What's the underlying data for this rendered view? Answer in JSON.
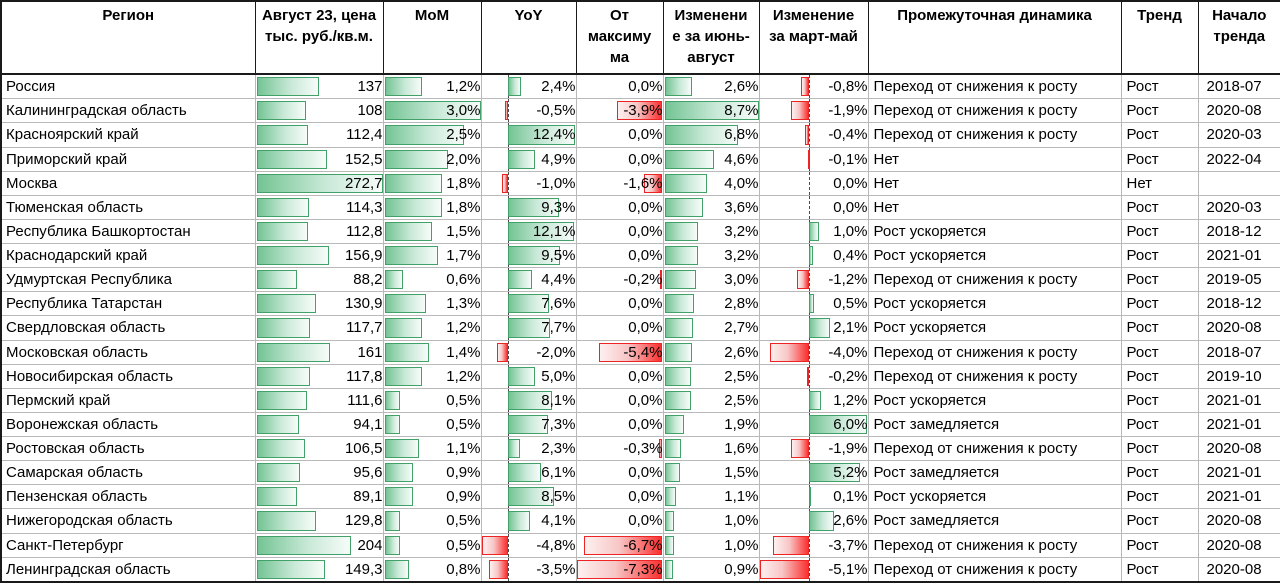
{
  "table": {
    "columns": [
      {
        "id": "region",
        "label": "Регион"
      },
      {
        "id": "price",
        "label": "Август 23, цена\nтыс. руб./кв.м."
      },
      {
        "id": "mom",
        "label": "MoM"
      },
      {
        "id": "yoy",
        "label": "YoY"
      },
      {
        "id": "from_max",
        "label": "От\nмаксиму\nма"
      },
      {
        "id": "jun_aug",
        "label": "Изменени\nе за июнь-\nавгуст"
      },
      {
        "id": "mar_may",
        "label": "Изменение\nза март-май"
      },
      {
        "id": "dynamics",
        "label": "Промежуточная динамика"
      },
      {
        "id": "trend",
        "label": "Тренд"
      },
      {
        "id": "trend_start",
        "label": "Начало\nтренда"
      }
    ],
    "rows": [
      {
        "region": "Россия",
        "price": "137",
        "price_v": 137,
        "mom": "1,2%",
        "mom_v": 1.2,
        "yoy": "2,4%",
        "yoy_v": 2.4,
        "from_max": "0,0%",
        "from_max_v": 0.0,
        "jun_aug": "2,6%",
        "jun_aug_v": 2.6,
        "mar_may": "-0,8%",
        "mar_may_v": -0.8,
        "dynamics": "Переход от снижения к росту",
        "trend": "Рост",
        "trend_start": "2018-07"
      },
      {
        "region": "Калининградская область",
        "price": "108",
        "price_v": 108,
        "mom": "3,0%",
        "mom_v": 3.0,
        "yoy": "-0,5%",
        "yoy_v": -0.5,
        "from_max": "-3,9%",
        "from_max_v": -3.9,
        "jun_aug": "8,7%",
        "jun_aug_v": 8.7,
        "mar_may": "-1,9%",
        "mar_may_v": -1.9,
        "dynamics": "Переход от снижения к росту",
        "trend": "Рост",
        "trend_start": "2020-08"
      },
      {
        "region": "Красноярский край",
        "price": "112,4",
        "price_v": 112.4,
        "mom": "2,5%",
        "mom_v": 2.5,
        "yoy": "12,4%",
        "yoy_v": 12.4,
        "from_max": "0,0%",
        "from_max_v": 0.0,
        "jun_aug": "6,8%",
        "jun_aug_v": 6.8,
        "mar_may": "-0,4%",
        "mar_may_v": -0.4,
        "dynamics": "Переход от снижения к росту",
        "trend": "Рост",
        "trend_start": "2020-03"
      },
      {
        "region": "Приморский край",
        "price": "152,5",
        "price_v": 152.5,
        "mom": "2,0%",
        "mom_v": 2.0,
        "yoy": "4,9%",
        "yoy_v": 4.9,
        "from_max": "0,0%",
        "from_max_v": 0.0,
        "jun_aug": "4,6%",
        "jun_aug_v": 4.6,
        "mar_may": "-0,1%",
        "mar_may_v": -0.1,
        "dynamics": "Нет",
        "trend": "Рост",
        "trend_start": "2022-04"
      },
      {
        "region": "Москва",
        "price": "272,7",
        "price_v": 272.7,
        "mom": "1,8%",
        "mom_v": 1.8,
        "yoy": "-1,0%",
        "yoy_v": -1.0,
        "from_max": "-1,6%",
        "from_max_v": -1.6,
        "jun_aug": "4,0%",
        "jun_aug_v": 4.0,
        "mar_may": "0,0%",
        "mar_may_v": 0.0,
        "dynamics": "Нет",
        "trend": "Нет",
        "trend_start": ""
      },
      {
        "region": "Тюменская область",
        "price": "114,3",
        "price_v": 114.3,
        "mom": "1,8%",
        "mom_v": 1.8,
        "yoy": "9,3%",
        "yoy_v": 9.3,
        "from_max": "0,0%",
        "from_max_v": 0.0,
        "jun_aug": "3,6%",
        "jun_aug_v": 3.6,
        "mar_may": "0,0%",
        "mar_may_v": 0.0,
        "dynamics": "Нет",
        "trend": "Рост",
        "trend_start": "2020-03"
      },
      {
        "region": "Республика Башкортостан",
        "price": "112,8",
        "price_v": 112.8,
        "mom": "1,5%",
        "mom_v": 1.5,
        "yoy": "12,1%",
        "yoy_v": 12.1,
        "from_max": "0,0%",
        "from_max_v": 0.0,
        "jun_aug": "3,2%",
        "jun_aug_v": 3.2,
        "mar_may": "1,0%",
        "mar_may_v": 1.0,
        "dynamics": "Рост ускоряется",
        "trend": "Рост",
        "trend_start": "2018-12"
      },
      {
        "region": "Краснодарский край",
        "price": "156,9",
        "price_v": 156.9,
        "mom": "1,7%",
        "mom_v": 1.7,
        "yoy": "9,5%",
        "yoy_v": 9.5,
        "from_max": "0,0%",
        "from_max_v": 0.0,
        "jun_aug": "3,2%",
        "jun_aug_v": 3.2,
        "mar_may": "0,4%",
        "mar_may_v": 0.4,
        "dynamics": "Рост ускоряется",
        "trend": "Рост",
        "trend_start": "2021-01"
      },
      {
        "region": "Удмуртская Республика",
        "price": "88,2",
        "price_v": 88.2,
        "mom": "0,6%",
        "mom_v": 0.6,
        "yoy": "4,4%",
        "yoy_v": 4.4,
        "from_max": "-0,2%",
        "from_max_v": -0.2,
        "jun_aug": "3,0%",
        "jun_aug_v": 3.0,
        "mar_may": "-1,2%",
        "mar_may_v": -1.2,
        "dynamics": "Переход от снижения к росту",
        "trend": "Рост",
        "trend_start": "2019-05"
      },
      {
        "region": "Республика Татарстан",
        "price": "130,9",
        "price_v": 130.9,
        "mom": "1,3%",
        "mom_v": 1.3,
        "yoy": "7,6%",
        "yoy_v": 7.6,
        "from_max": "0,0%",
        "from_max_v": 0.0,
        "jun_aug": "2,8%",
        "jun_aug_v": 2.8,
        "mar_may": "0,5%",
        "mar_may_v": 0.5,
        "dynamics": "Рост ускоряется",
        "trend": "Рост",
        "trend_start": "2018-12"
      },
      {
        "region": "Свердловская область",
        "price": "117,7",
        "price_v": 117.7,
        "mom": "1,2%",
        "mom_v": 1.2,
        "yoy": "7,7%",
        "yoy_v": 7.7,
        "from_max": "0,0%",
        "from_max_v": 0.0,
        "jun_aug": "2,7%",
        "jun_aug_v": 2.7,
        "mar_may": "2,1%",
        "mar_may_v": 2.1,
        "dynamics": "Рост ускоряется",
        "trend": "Рост",
        "trend_start": "2020-08"
      },
      {
        "region": "Московская область",
        "price": "161",
        "price_v": 161,
        "mom": "1,4%",
        "mom_v": 1.4,
        "yoy": "-2,0%",
        "yoy_v": -2.0,
        "from_max": "-5,4%",
        "from_max_v": -5.4,
        "jun_aug": "2,6%",
        "jun_aug_v": 2.6,
        "mar_may": "-4,0%",
        "mar_may_v": -4.0,
        "dynamics": "Переход от снижения к росту",
        "trend": "Рост",
        "trend_start": "2018-07"
      },
      {
        "region": "Новосибирская область",
        "price": "117,8",
        "price_v": 117.8,
        "mom": "1,2%",
        "mom_v": 1.2,
        "yoy": "5,0%",
        "yoy_v": 5.0,
        "from_max": "0,0%",
        "from_max_v": 0.0,
        "jun_aug": "2,5%",
        "jun_aug_v": 2.5,
        "mar_may": "-0,2%",
        "mar_may_v": -0.2,
        "dynamics": "Переход от снижения к росту",
        "trend": "Рост",
        "trend_start": "2019-10"
      },
      {
        "region": "Пермский край",
        "price": "111,6",
        "price_v": 111.6,
        "mom": "0,5%",
        "mom_v": 0.5,
        "yoy": "8,1%",
        "yoy_v": 8.1,
        "from_max": "0,0%",
        "from_max_v": 0.0,
        "jun_aug": "2,5%",
        "jun_aug_v": 2.5,
        "mar_may": "1,2%",
        "mar_may_v": 1.2,
        "dynamics": "Рост ускоряется",
        "trend": "Рост",
        "trend_start": "2021-01"
      },
      {
        "region": "Воронежская область",
        "price": "94,1",
        "price_v": 94.1,
        "mom": "0,5%",
        "mom_v": 0.5,
        "yoy": "7,3%",
        "yoy_v": 7.3,
        "from_max": "0,0%",
        "from_max_v": 0.0,
        "jun_aug": "1,9%",
        "jun_aug_v": 1.9,
        "mar_may": "6,0%",
        "mar_may_v": 6.0,
        "dynamics": "Рост замедляется",
        "trend": "Рост",
        "trend_start": "2021-01"
      },
      {
        "region": "Ростовская область",
        "price": "106,5",
        "price_v": 106.5,
        "mom": "1,1%",
        "mom_v": 1.1,
        "yoy": "2,3%",
        "yoy_v": 2.3,
        "from_max": "-0,3%",
        "from_max_v": -0.3,
        "jun_aug": "1,6%",
        "jun_aug_v": 1.6,
        "mar_may": "-1,9%",
        "mar_may_v": -1.9,
        "dynamics": "Переход от снижения к росту",
        "trend": "Рост",
        "trend_start": "2020-08"
      },
      {
        "region": "Самарская область",
        "price": "95,6",
        "price_v": 95.6,
        "mom": "0,9%",
        "mom_v": 0.9,
        "yoy": "6,1%",
        "yoy_v": 6.1,
        "from_max": "0,0%",
        "from_max_v": 0.0,
        "jun_aug": "1,5%",
        "jun_aug_v": 1.5,
        "mar_may": "5,2%",
        "mar_may_v": 5.2,
        "dynamics": "Рост замедляется",
        "trend": "Рост",
        "trend_start": "2021-01"
      },
      {
        "region": "Пензенская область",
        "price": "89,1",
        "price_v": 89.1,
        "mom": "0,9%",
        "mom_v": 0.9,
        "yoy": "8,5%",
        "yoy_v": 8.5,
        "from_max": "0,0%",
        "from_max_v": 0.0,
        "jun_aug": "1,1%",
        "jun_aug_v": 1.1,
        "mar_may": "0,1%",
        "mar_may_v": 0.1,
        "dynamics": "Рост ускоряется",
        "trend": "Рост",
        "trend_start": "2021-01"
      },
      {
        "region": "Нижегородская область",
        "price": "129,8",
        "price_v": 129.8,
        "mom": "0,5%",
        "mom_v": 0.5,
        "yoy": "4,1%",
        "yoy_v": 4.1,
        "from_max": "0,0%",
        "from_max_v": 0.0,
        "jun_aug": "1,0%",
        "jun_aug_v": 1.0,
        "mar_may": "2,6%",
        "mar_may_v": 2.6,
        "dynamics": "Рост замедляется",
        "trend": "Рост",
        "trend_start": "2020-08"
      },
      {
        "region": "Санкт-Петербург",
        "price": "204",
        "price_v": 204,
        "mom": "0,5%",
        "mom_v": 0.5,
        "yoy": "-4,8%",
        "yoy_v": -4.8,
        "from_max": "-6,7%",
        "from_max_v": -6.7,
        "jun_aug": "1,0%",
        "jun_aug_v": 1.0,
        "mar_may": "-3,7%",
        "mar_may_v": -3.7,
        "dynamics": "Переход от снижения к росту",
        "trend": "Рост",
        "trend_start": "2020-08"
      },
      {
        "region": "Ленинградская область",
        "price": "149,3",
        "price_v": 149.3,
        "mom": "0,8%",
        "mom_v": 0.8,
        "yoy": "-3,5%",
        "yoy_v": -3.5,
        "from_max": "-7,3%",
        "from_max_v": -7.3,
        "jun_aug": "0,9%",
        "jun_aug_v": 0.9,
        "mar_may": "-5,1%",
        "mar_may_v": -5.1,
        "dynamics": "Переход от снижения к росту",
        "trend": "Рост",
        "trend_start": "2020-08"
      }
    ]
  },
  "bar_scales": {
    "price": {
      "min": 0,
      "max": 272.7
    },
    "mom": {
      "min": 0,
      "max": 3.0
    },
    "yoy": {
      "min": -4.8,
      "max": 12.4
    },
    "from_max": {
      "min": -7.3,
      "max": 0
    },
    "jun_aug": {
      "min": 0,
      "max": 8.7
    },
    "mar_may": {
      "min": -5.1,
      "max": 6.0
    }
  },
  "colors": {
    "bar_green_base": "#74c494",
    "bar_green_border": "#42a169",
    "bar_red_base": "#fb3030",
    "bar_red_border": "#ed2424",
    "grid_line": "#b9b9b9",
    "header_border": "#1a1a1a",
    "axis_dash": "#4a4a4a"
  }
}
